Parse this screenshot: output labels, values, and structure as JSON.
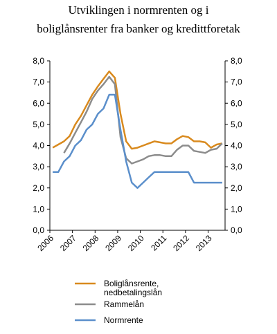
{
  "chart_data": {
    "type": "line",
    "title": [
      "Utviklingen i normrenten og i",
      "boliglånsrenter fra banker og kredittforetak"
    ],
    "categories": [
      "2006",
      null,
      null,
      null,
      "2007",
      null,
      null,
      null,
      "2008",
      null,
      null,
      null,
      "2009",
      null,
      null,
      null,
      "2010",
      null,
      null,
      null,
      "2011",
      null,
      null,
      null,
      "2012",
      null,
      null,
      null,
      "2013",
      null,
      null
    ],
    "series": [
      {
        "name": "Boliglånsrente, nedbetalingslån",
        "color": "#d98a1e",
        "values": [
          3.9,
          4.05,
          4.2,
          4.45,
          5.0,
          5.4,
          5.9,
          6.4,
          6.8,
          7.15,
          7.5,
          7.2,
          5.5,
          4.2,
          3.85,
          3.9,
          4.0,
          4.1,
          4.2,
          4.15,
          4.1,
          4.1,
          4.3,
          4.45,
          4.4,
          4.2,
          4.2,
          4.15,
          3.9,
          4.05,
          4.1
        ]
      },
      {
        "name": "Rammelån",
        "color": "#8c8c8c",
        "values": [
          null,
          null,
          3.65,
          4.1,
          4.6,
          5.1,
          5.6,
          6.2,
          6.6,
          6.9,
          7.25,
          6.9,
          4.4,
          3.4,
          3.15,
          3.25,
          3.35,
          3.5,
          3.55,
          3.55,
          3.5,
          3.5,
          3.8,
          4.0,
          4.0,
          3.75,
          3.7,
          3.65,
          3.8,
          3.85,
          4.1
        ]
      },
      {
        "name": "Normrente",
        "color": "#5b8fcb",
        "values": [
          2.75,
          2.75,
          3.25,
          3.5,
          4.0,
          4.25,
          4.75,
          5.0,
          5.5,
          5.75,
          6.4,
          6.4,
          4.75,
          3.25,
          2.25,
          2.0,
          2.25,
          2.5,
          2.75,
          2.75,
          2.75,
          2.75,
          2.75,
          2.75,
          2.75,
          2.25,
          2.25,
          2.25,
          2.25,
          2.25,
          2.25
        ]
      }
    ],
    "ylim": [
      0,
      8
    ],
    "yticks": [
      {
        "value": 0,
        "label": "0,0"
      },
      {
        "value": 1,
        "label": "1,0"
      },
      {
        "value": 2,
        "label": "2,0"
      },
      {
        "value": 3,
        "label": "3,0"
      },
      {
        "value": 4,
        "label": "4,0"
      },
      {
        "value": 5,
        "label": "5,0"
      },
      {
        "value": 6,
        "label": "6,0"
      },
      {
        "value": 7,
        "label": "7,0"
      },
      {
        "value": 8,
        "label": "8,0"
      }
    ],
    "y2lim": [
      0,
      8
    ],
    "y2ticks": [
      {
        "value": 0,
        "label": "0,0"
      },
      {
        "value": 1,
        "label": "1,0"
      },
      {
        "value": 2,
        "label": "2,0"
      },
      {
        "value": 3,
        "label": "3,0"
      },
      {
        "value": 4,
        "label": "4,0"
      },
      {
        "value": 5,
        "label": "5,0"
      },
      {
        "value": 6,
        "label": "6,0"
      },
      {
        "value": 7,
        "label": "7,0"
      },
      {
        "value": 8,
        "label": "8,0"
      }
    ],
    "grid": false
  }
}
